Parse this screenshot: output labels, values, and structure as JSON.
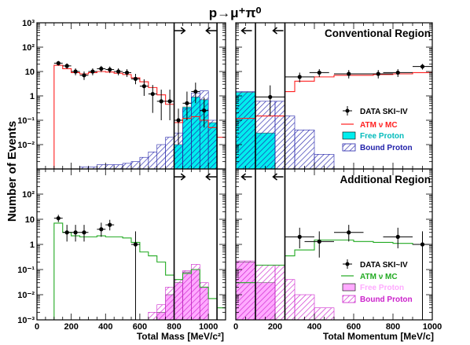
{
  "title": "p→μ⁺π⁰",
  "ylabel": "Number of Events",
  "colors": {
    "data": "#000000",
    "atm_top": "#ff2020",
    "atm_bottom": "#22aa22",
    "free_top": "#00eeee",
    "bound_top": "#2222aa",
    "free_bottom": "#ffaaff",
    "bound_bottom": "#cc22cc"
  },
  "chart_data": [
    {
      "type": "histogram",
      "panel": "top-left",
      "region_label": "",
      "xlim": [
        0,
        1100
      ],
      "ylim": [
        0.001,
        1000
      ],
      "log_y": true,
      "yticks": [
        {
          "v": 0.01,
          "label": "10⁻²"
        },
        {
          "v": 0.1,
          "label": "10⁻¹"
        },
        {
          "v": 1,
          "label": "1"
        },
        {
          "v": 10,
          "label": "10"
        },
        {
          "v": 100,
          "label": "10²"
        },
        {
          "v": 1000,
          "label": "10³"
        }
      ],
      "cut_lines": [
        800,
        1050
      ],
      "arrows": [
        {
          "x": 840,
          "dir": "right"
        },
        {
          "x": 1010,
          "dir": "left"
        }
      ],
      "data_points": {
        "x": [
          125,
          175,
          225,
          275,
          325,
          375,
          425,
          475,
          525,
          575,
          625,
          675,
          725,
          775,
          825,
          875,
          925,
          975
        ],
        "y": [
          22,
          17,
          10,
          7,
          10,
          13,
          12,
          10,
          9,
          5,
          2.5,
          1.2,
          0.6,
          0.6,
          0.1,
          0.5,
          1.5,
          0.25
        ],
        "yerr_lo": [
          4.6,
          4,
          3,
          2.5,
          3,
          3.5,
          3.4,
          3,
          3,
          2,
          1.5,
          1,
          0.5,
          0.5,
          0.09,
          0.4,
          1.0,
          0.2
        ],
        "yerr_hi": [
          5,
          4.5,
          3.5,
          3,
          3.5,
          4,
          4,
          3.5,
          3.5,
          3,
          2.3,
          1.6,
          1.2,
          1.2,
          0.2,
          1,
          2,
          0.6
        ]
      },
      "atm_mc": {
        "edges": [
          100,
          150,
          200,
          250,
          300,
          350,
          400,
          450,
          500,
          550,
          600,
          650,
          700,
          750,
          800,
          850,
          900,
          950,
          1000,
          1050,
          1100
        ],
        "values": [
          18,
          13,
          9,
          8,
          9,
          10,
          9.5,
          8.5,
          7.5,
          5.5,
          3.8,
          2.2,
          1.1,
          0.45,
          0.08,
          0.12,
          0.14,
          0.1,
          0.05,
          0.02
        ]
      },
      "free_proton": {
        "edges": [
          800,
          850,
          900,
          950,
          1000,
          1050
        ],
        "values": [
          0.01,
          0.35,
          0.9,
          0.7,
          0.08
        ]
      },
      "bound_proton": {
        "edges": [
          250,
          300,
          350,
          400,
          450,
          500,
          550,
          600,
          650,
          700,
          750,
          800,
          850,
          900,
          950,
          1000,
          1050
        ],
        "values": [
          0.0012,
          0.0012,
          0.0015,
          0.0015,
          0.0015,
          0.0017,
          0.002,
          0.003,
          0.005,
          0.01,
          0.02,
          0.03,
          0.3,
          1.3,
          1.6,
          0.1
        ]
      }
    },
    {
      "type": "histogram",
      "panel": "top-right",
      "region_label": "Conventional Region",
      "xlim": [
        0,
        1000
      ],
      "ylim": [
        0.001,
        1000
      ],
      "log_y": true,
      "cut_lines": [
        100,
        250
      ],
      "arrows": [
        {
          "x": 50,
          "dir": "left"
        },
        {
          "x": 210,
          "dir": "left"
        }
      ],
      "data_points": {
        "x": [
          175,
          325,
          425,
          575,
          725,
          825,
          950
        ],
        "xerr": [
          75,
          75,
          50,
          75,
          75,
          75,
          50
        ],
        "y": [
          0.9,
          6,
          9,
          8,
          8,
          9,
          16
        ],
        "yerr_lo": [
          0.75,
          2.4,
          3,
          2.8,
          2.8,
          3,
          4
        ],
        "yerr_hi": [
          1.8,
          3,
          3.5,
          3.5,
          3.5,
          3.5,
          4.5
        ]
      },
      "atm_mc": {
        "edges": [
          0,
          100,
          200,
          250,
          300,
          400,
          500,
          600,
          700,
          800,
          900,
          1000
        ],
        "values": [
          0.12,
          0.15,
          0.15,
          1.5,
          4,
          6,
          7,
          7,
          7.5,
          8,
          9
        ]
      },
      "free_proton": {
        "edges": [
          0,
          100,
          200
        ],
        "values": [
          1.4,
          0.03
        ]
      },
      "bound_proton": {
        "edges": [
          0,
          100,
          200,
          250,
          300,
          400,
          500
        ],
        "values": [
          1.5,
          0.6,
          0.6,
          0.15,
          0.04,
          0.004
        ]
      },
      "legend": [
        {
          "kind": "marker",
          "label": "DATA SKI~IV"
        },
        {
          "kind": "line",
          "label": "ATM ν MC"
        },
        {
          "kind": "fill",
          "label": "Free Proton"
        },
        {
          "kind": "hatch",
          "label": "Bound Proton"
        }
      ]
    },
    {
      "type": "histogram",
      "panel": "bottom-left",
      "region_label": "",
      "xlim": [
        0,
        1100
      ],
      "ylim": [
        0.001,
        1000
      ],
      "log_y": true,
      "xlabel": "Total Mass [MeV/c²]",
      "xticks": [
        0,
        200,
        400,
        600,
        800,
        1000
      ],
      "yticks": [
        {
          "v": 0.001,
          "label": "10⁻³"
        },
        {
          "v": 0.01,
          "label": "10⁻²"
        },
        {
          "v": 0.1,
          "label": "10⁻¹"
        },
        {
          "v": 1,
          "label": "1"
        },
        {
          "v": 10,
          "label": "10"
        },
        {
          "v": 100,
          "label": "10²"
        }
      ],
      "cut_lines": [
        800,
        1050
      ],
      "arrows": [
        {
          "x": 840,
          "dir": "right"
        },
        {
          "x": 1010,
          "dir": "left"
        }
      ],
      "data_points": {
        "x": [
          125,
          175,
          225,
          275,
          375,
          425,
          575
        ],
        "y": [
          11,
          3,
          3,
          3,
          4,
          6,
          1
        ],
        "yerr_lo": [
          3.3,
          1.7,
          1.7,
          1.7,
          2,
          2.4,
          0.999
        ],
        "yerr_hi": [
          4,
          3,
          3,
          3,
          3.3,
          3.5,
          2.3
        ]
      },
      "atm_mc": {
        "edges": [
          100,
          150,
          200,
          250,
          300,
          350,
          400,
          450,
          500,
          550,
          600,
          650,
          700,
          750,
          800,
          850,
          900,
          950,
          1000,
          1050,
          1100
        ],
        "values": [
          7,
          3,
          2.2,
          2,
          2,
          2.2,
          2,
          2,
          1.8,
          1.2,
          0.5,
          0.35,
          0.2,
          0.06,
          0.04,
          0.07,
          0.1,
          0.02,
          0.007,
          0.003
        ]
      },
      "free_proton": {
        "edges": [
          700,
          750,
          800,
          850,
          900,
          950,
          1000
        ],
        "values": [
          0.002,
          0.01,
          0.03,
          0.08,
          0.1,
          0.02
        ]
      },
      "bound_proton": {
        "edges": [
          650,
          700,
          750,
          800,
          850,
          900,
          950,
          1000
        ],
        "values": [
          0.002,
          0.004,
          0.02,
          0.04,
          0.09,
          0.16,
          0.03
        ]
      }
    },
    {
      "type": "histogram",
      "panel": "bottom-right",
      "region_label": "Additional Region",
      "xlim": [
        0,
        1000
      ],
      "ylim": [
        0.001,
        1000
      ],
      "log_y": true,
      "xlabel": "Total Momentum [MeV/c]",
      "xticks": [
        0,
        200,
        400,
        600,
        800,
        1000
      ],
      "cut_lines": [
        100,
        250
      ],
      "arrows": [
        {
          "x": 50,
          "dir": "left"
        },
        {
          "x": 210,
          "dir": "left"
        }
      ],
      "data_points": {
        "x": [
          325,
          425,
          575,
          825,
          950
        ],
        "xerr": [
          75,
          75,
          75,
          75,
          50
        ],
        "y": [
          2,
          1.3,
          3,
          2,
          1
        ],
        "yerr_lo": [
          1.3,
          1.0,
          1.7,
          1.3,
          0.999
        ],
        "yerr_hi": [
          2.6,
          2.0,
          3,
          2.6,
          2.3
        ]
      },
      "atm_mc": {
        "edges": [
          0,
          100,
          200,
          250,
          300,
          400,
          500,
          600,
          700,
          800,
          900,
          1000
        ],
        "values": [
          0.03,
          0.15,
          0.15,
          0.35,
          0.6,
          1.5,
          1.5,
          1.3,
          1.2,
          1.1,
          1.0
        ]
      },
      "free_proton": {
        "edges": [
          0,
          100,
          200
        ],
        "values": [
          0.2,
          0.03
        ]
      },
      "bound_proton": {
        "edges": [
          0,
          100,
          200,
          250,
          300,
          400,
          500
        ],
        "values": [
          0.22,
          0.15,
          0.15,
          0.04,
          0.01,
          0.003
        ]
      },
      "legend": [
        {
          "kind": "marker",
          "label": "DATA SKI~IV"
        },
        {
          "kind": "line",
          "label": "ATM ν MC"
        },
        {
          "kind": "fill",
          "label": "Free Proton"
        },
        {
          "kind": "hatch",
          "label": "Bound Proton"
        }
      ]
    }
  ]
}
